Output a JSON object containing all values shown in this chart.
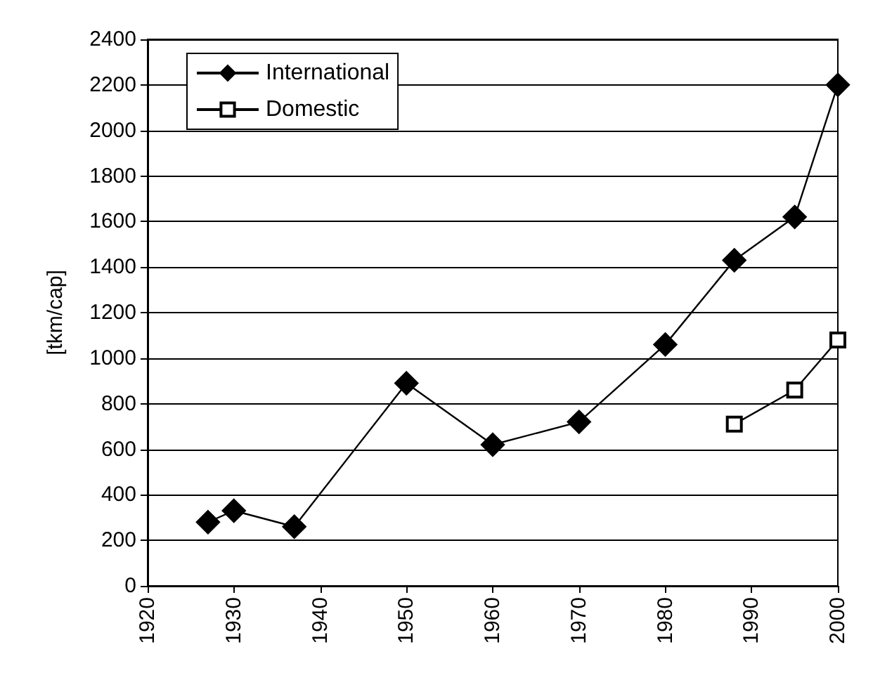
{
  "chart_data": {
    "type": "line",
    "ylabel": "[tkm/cap]",
    "xlim": [
      1920,
      2000
    ],
    "xticks": [
      1920,
      1930,
      1940,
      1950,
      1960,
      1970,
      1980,
      1990,
      2000
    ],
    "ylim": [
      0,
      2400
    ],
    "yticks": [
      0,
      200,
      400,
      600,
      800,
      1000,
      1200,
      1400,
      1600,
      1800,
      2000,
      2200,
      2400
    ],
    "grid": "y",
    "legend": "top left",
    "series": [
      {
        "name": "International",
        "color": "#000000",
        "marker": "diamond",
        "x": [
          1927,
          1930,
          1937,
          1950,
          1960,
          1970,
          1980,
          1988,
          1995,
          2000
        ],
        "values": [
          280,
          330,
          260,
          890,
          620,
          720,
          1060,
          1430,
          1620,
          2200
        ]
      },
      {
        "name": "Domestic",
        "color": "#000000",
        "marker": "square",
        "x": [
          1988,
          1995,
          2000
        ],
        "values": [
          710,
          860,
          1080
        ]
      }
    ]
  }
}
